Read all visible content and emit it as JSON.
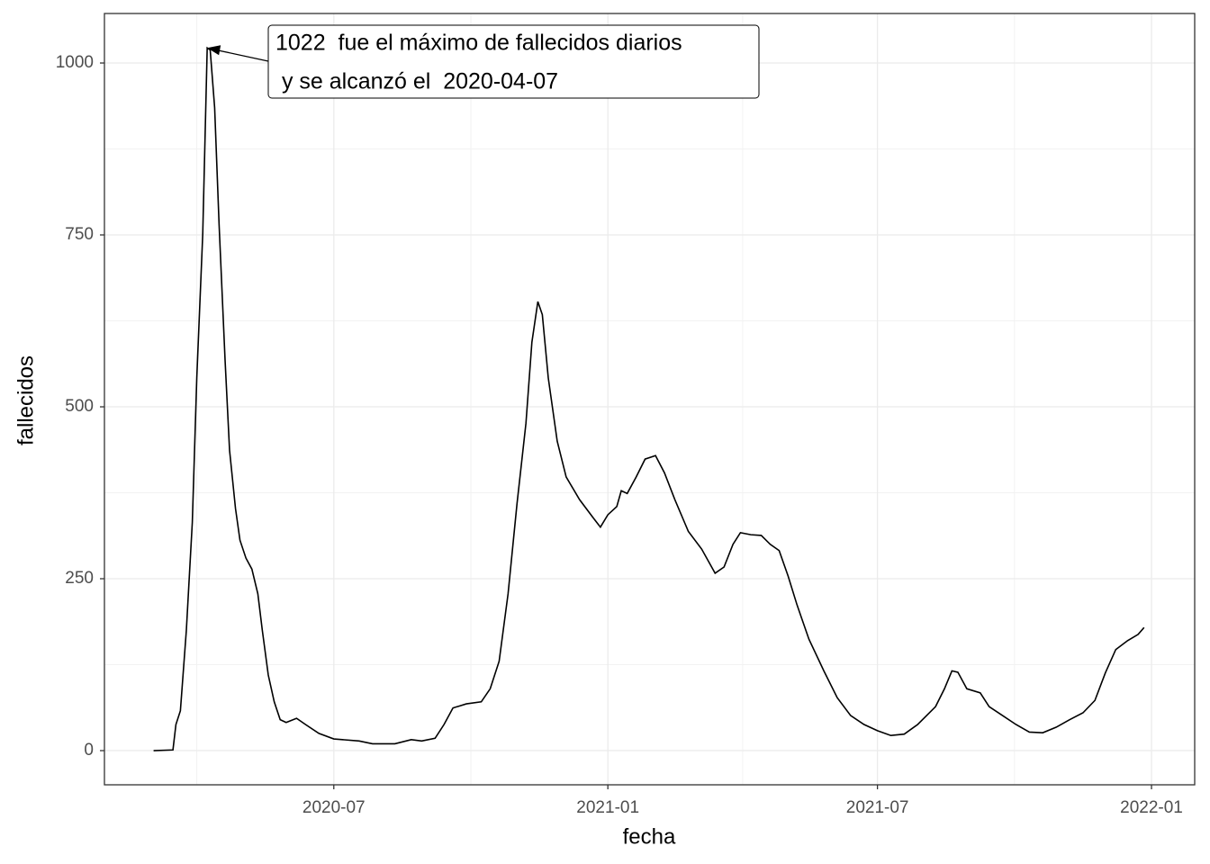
{
  "chart_data": {
    "type": "line",
    "x_label": "fecha",
    "y_label": "fallecidos",
    "x": [
      "2020-03-02",
      "2020-03-15",
      "2020-03-17",
      "2020-03-20",
      "2020-03-24",
      "2020-03-28",
      "2020-03-31",
      "2020-04-04",
      "2020-04-07",
      "2020-04-09",
      "2020-04-12",
      "2020-04-15",
      "2020-04-19",
      "2020-04-22",
      "2020-04-26",
      "2020-04-29",
      "2020-05-03",
      "2020-05-07",
      "2020-05-11",
      "2020-05-14",
      "2020-05-18",
      "2020-05-22",
      "2020-05-26",
      "2020-05-30",
      "2020-06-06",
      "2020-06-12",
      "2020-06-21",
      "2020-07-01",
      "2020-07-18",
      "2020-07-27",
      "2020-08-11",
      "2020-08-22",
      "2020-08-29",
      "2020-09-07",
      "2020-09-13",
      "2020-09-19",
      "2020-09-28",
      "2020-10-08",
      "2020-10-14",
      "2020-10-20",
      "2020-10-26",
      "2020-11-01",
      "2020-11-07",
      "2020-11-11",
      "2020-11-15",
      "2020-11-18",
      "2020-11-22",
      "2020-11-28",
      "2020-12-04",
      "2020-12-13",
      "2020-12-22",
      "2020-12-27",
      "2021-01-01",
      "2021-01-07",
      "2021-01-10",
      "2021-01-14",
      "2021-01-20",
      "2021-01-26",
      "2021-02-02",
      "2021-02-08",
      "2021-02-15",
      "2021-02-24",
      "2021-03-05",
      "2021-03-14",
      "2021-03-20",
      "2021-03-26",
      "2021-03-31",
      "2021-04-07",
      "2021-04-14",
      "2021-04-20",
      "2021-04-26",
      "2021-05-02",
      "2021-05-08",
      "2021-05-16",
      "2021-05-26",
      "2021-06-04",
      "2021-06-13",
      "2021-06-22",
      "2021-07-01",
      "2021-07-10",
      "2021-07-19",
      "2021-07-28",
      "2021-08-09",
      "2021-08-15",
      "2021-08-20",
      "2021-08-24",
      "2021-08-30",
      "2021-09-08",
      "2021-09-14",
      "2021-09-23",
      "2021-10-02",
      "2021-10-11",
      "2021-10-20",
      "2021-10-29",
      "2021-11-07",
      "2021-11-16",
      "2021-11-24",
      "2021-12-01",
      "2021-12-08",
      "2021-12-16",
      "2021-12-23",
      "2021-12-27"
    ],
    "series": [
      {
        "color": "#000000",
        "values": [
          0,
          1,
          38,
          58,
          175,
          332,
          542,
          751,
          1022,
          1019,
          935,
          764,
          568,
          437,
          352,
          306,
          280,
          264,
          228,
          175,
          110,
          71,
          45,
          41,
          47,
          38,
          25,
          17,
          14,
          10,
          10,
          16,
          14,
          18,
          38,
          62,
          68,
          71,
          90,
          130,
          228,
          359,
          476,
          594,
          653,
          634,
          542,
          450,
          398,
          365,
          339,
          325,
          343,
          355,
          378,
          374,
          398,
          424,
          429,
          404,
          365,
          319,
          293,
          258,
          267,
          300,
          317,
          314,
          313,
          300,
          291,
          254,
          212,
          162,
          116,
          77,
          51,
          38,
          29,
          22,
          24,
          38,
          64,
          90,
          116,
          114,
          90,
          84,
          64,
          51,
          38,
          27,
          26,
          34,
          45,
          55,
          73,
          113,
          147,
          160,
          169,
          179
        ]
      }
    ],
    "xlim": [
      "2020-01-29",
      "2022-01-30"
    ],
    "xticks": [
      {
        "value": "2020-07-01",
        "label": "2020-07"
      },
      {
        "value": "2021-01-01",
        "label": "2021-01"
      },
      {
        "value": "2021-07-01",
        "label": "2021-07"
      },
      {
        "value": "2022-01-01",
        "label": "2022-01"
      }
    ],
    "ylim": [
      -49.7,
      1072
    ],
    "yticks": [
      0,
      250,
      500,
      750,
      1000
    ],
    "grid": true,
    "annotation": {
      "lines": [
        "1022  fue el máximo de fallecidos diarios",
        " y se alcanzó el  2020-04-07"
      ],
      "x": "2020-04-07",
      "y": 1022
    }
  }
}
